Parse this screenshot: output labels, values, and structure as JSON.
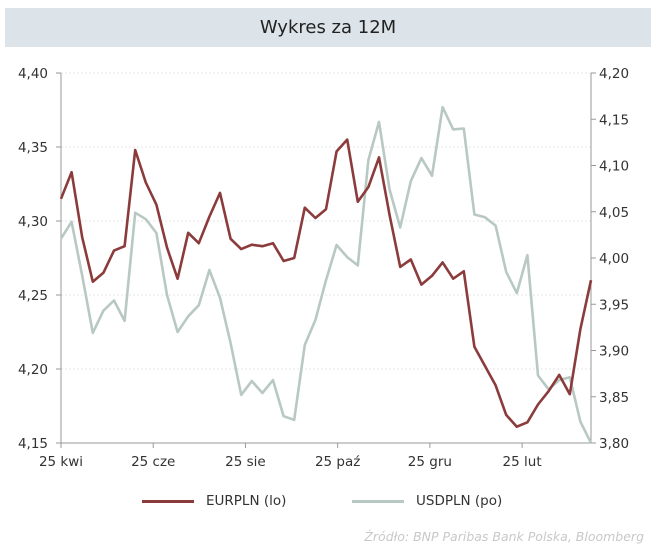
{
  "chart_data": {
    "type": "line",
    "title": "Wykres za 12M",
    "x_tick_labels": [
      "25 kwi",
      "25 cze",
      "25 sie",
      "25 paź",
      "25 gru",
      "25 lut"
    ],
    "y_left": {
      "range": [
        4.15,
        4.4
      ],
      "ticks": [
        "4,15",
        "4,20",
        "4,25",
        "4,30",
        "4,35",
        "4,40"
      ]
    },
    "y_right": {
      "range": [
        3.8,
        4.2
      ],
      "ticks": [
        "3,80",
        "3,85",
        "3,90",
        "3,95",
        "4,00",
        "4,05",
        "4,10",
        "4,15",
        "4,20"
      ]
    },
    "grid": "horizontal dotted",
    "legend_placement": "bottom",
    "series": [
      {
        "name": "EURPLN (lo)",
        "axis": "left",
        "color": "#8b3b3b",
        "values": [
          4.315,
          4.333,
          4.289,
          4.259,
          4.265,
          4.28,
          4.283,
          4.348,
          4.326,
          4.311,
          4.282,
          4.261,
          4.292,
          4.285,
          4.303,
          4.319,
          4.288,
          4.281,
          4.284,
          4.283,
          4.285,
          4.273,
          4.275,
          4.309,
          4.302,
          4.308,
          4.347,
          4.355,
          4.313,
          4.323,
          4.343,
          4.304,
          4.269,
          4.274,
          4.257,
          4.263,
          4.272,
          4.261,
          4.266,
          4.215,
          4.202,
          4.189,
          4.169,
          4.161,
          4.164,
          4.176,
          4.185,
          4.196,
          4.183,
          4.227,
          4.26
        ]
      },
      {
        "name": "USDPLN (po)",
        "axis": "right",
        "color": "#b8c8c2",
        "values": [
          4.021,
          4.039,
          3.981,
          3.919,
          3.943,
          3.954,
          3.932,
          4.049,
          4.042,
          4.027,
          3.96,
          3.92,
          3.937,
          3.949,
          3.987,
          3.957,
          3.908,
          3.852,
          3.867,
          3.854,
          3.868,
          3.829,
          3.825,
          3.906,
          3.933,
          3.976,
          4.014,
          4.001,
          3.992,
          4.106,
          4.147,
          4.074,
          4.033,
          4.083,
          4.108,
          4.089,
          4.163,
          4.139,
          4.14,
          4.047,
          4.044,
          4.035,
          3.985,
          3.962,
          4.003,
          3.873,
          3.858,
          3.868,
          3.871,
          3.823,
          3.8
        ]
      }
    ],
    "source": "Źródło:  BNP Paribas Bank Polska, Bloomberg"
  }
}
